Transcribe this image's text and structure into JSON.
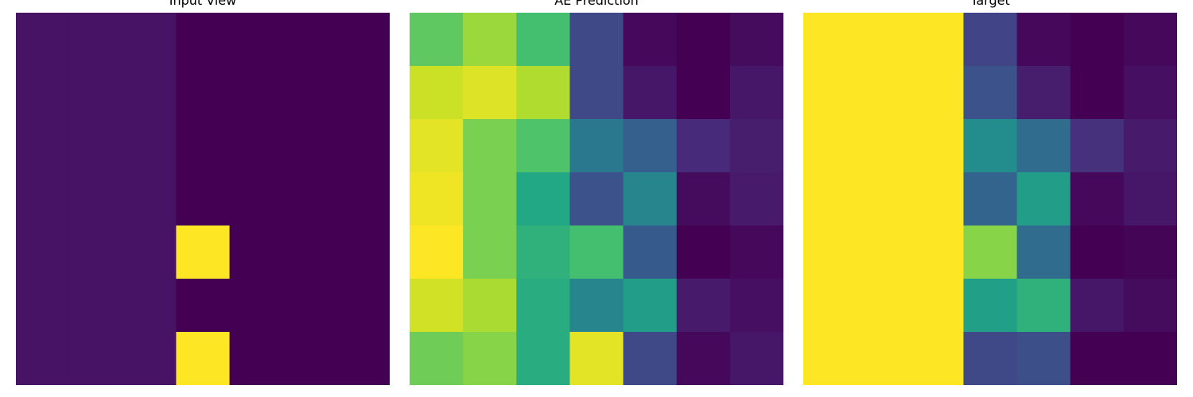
{
  "chart_data": [
    {
      "type": "heatmap",
      "title": "Input View",
      "colormap": "viridis",
      "vmin": 0,
      "vmax": 1,
      "rows": 7,
      "cols": 7,
      "values": [
        [
          0.05,
          0.05,
          0.05,
          0.0,
          0.0,
          0.0,
          0.0
        ],
        [
          0.05,
          0.05,
          0.05,
          0.0,
          0.0,
          0.0,
          0.0
        ],
        [
          0.05,
          0.05,
          0.05,
          0.0,
          0.0,
          0.0,
          0.0
        ],
        [
          0.05,
          0.05,
          0.05,
          0.0,
          0.0,
          0.0,
          0.0
        ],
        [
          0.05,
          0.05,
          0.05,
          1.0,
          0.0,
          0.0,
          0.0
        ],
        [
          0.05,
          0.05,
          0.05,
          0.0,
          0.0,
          0.0,
          0.0
        ],
        [
          0.05,
          0.05,
          0.05,
          1.0,
          0.0,
          0.0,
          0.0
        ]
      ]
    },
    {
      "type": "heatmap",
      "title": "AE Prediction",
      "colormap": "viridis",
      "vmin": 0,
      "vmax": 1,
      "rows": 7,
      "cols": 7,
      "values": [
        [
          0.75,
          0.85,
          0.7,
          0.22,
          0.02,
          0.0,
          0.03
        ],
        [
          0.92,
          0.95,
          0.88,
          0.22,
          0.06,
          0.0,
          0.06
        ],
        [
          0.96,
          0.8,
          0.72,
          0.4,
          0.3,
          0.12,
          0.08
        ],
        [
          0.98,
          0.8,
          0.6,
          0.25,
          0.45,
          0.03,
          0.07
        ],
        [
          1.0,
          0.8,
          0.64,
          0.7,
          0.28,
          0.0,
          0.02
        ],
        [
          0.93,
          0.87,
          0.62,
          0.45,
          0.55,
          0.07,
          0.04
        ],
        [
          0.78,
          0.82,
          0.62,
          0.96,
          0.22,
          0.02,
          0.06
        ]
      ]
    },
    {
      "type": "heatmap",
      "title": "Target",
      "colormap": "viridis",
      "vmin": 0,
      "vmax": 1,
      "rows": 7,
      "cols": 7,
      "values": [
        [
          1.0,
          1.0,
          1.0,
          0.2,
          0.02,
          0.0,
          0.02
        ],
        [
          1.0,
          1.0,
          1.0,
          0.25,
          0.08,
          0.0,
          0.04
        ],
        [
          1.0,
          1.0,
          1.0,
          0.48,
          0.35,
          0.14,
          0.07
        ],
        [
          1.0,
          1.0,
          1.0,
          0.32,
          0.55,
          0.02,
          0.06
        ],
        [
          1.0,
          1.0,
          1.0,
          0.82,
          0.35,
          0.0,
          0.01
        ],
        [
          1.0,
          1.0,
          1.0,
          0.56,
          0.64,
          0.06,
          0.03
        ],
        [
          1.0,
          1.0,
          1.0,
          0.22,
          0.24,
          0.0,
          0.0
        ]
      ]
    }
  ]
}
